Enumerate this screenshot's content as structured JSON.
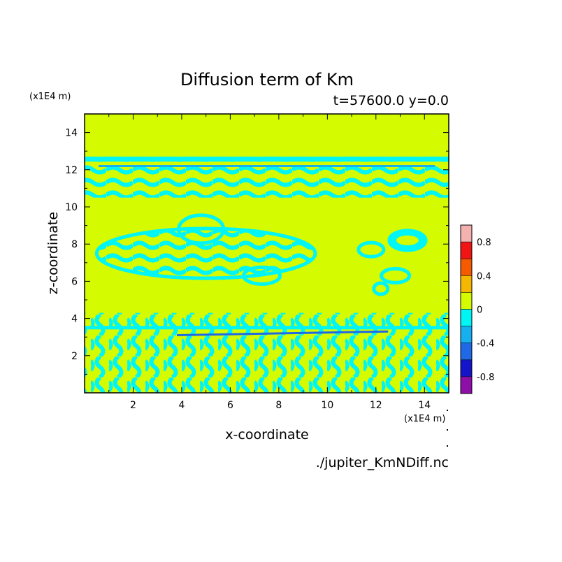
{
  "chart_data": {
    "type": "heatmap",
    "title": "Diffusion term of Km",
    "subtitle": "t=57600.0 y=0.0",
    "xlabel": "x-coordinate",
    "ylabel": "z-coordinate",
    "x_unit_label": "(x1E4 m)",
    "y_unit_label": "(x1E4 m)",
    "source_label": "./jupiter_KmNDiff.nc",
    "xlim": [
      0,
      15
    ],
    "ylim": [
      0,
      15
    ],
    "x_ticks": [
      2,
      4,
      6,
      8,
      10,
      12,
      14
    ],
    "y_ticks": [
      2,
      4,
      6,
      8,
      10,
      12,
      14
    ],
    "background_level": "0 to 0.2",
    "background_color": "#d4fb00",
    "colorbar": {
      "boundaries": [
        -1.0,
        -0.8,
        -0.6,
        -0.4,
        -0.2,
        0.0,
        0.2,
        0.4,
        0.6,
        0.8,
        1.0
      ],
      "colors": [
        "#8e0fa8",
        "#1414c8",
        "#1f69e6",
        "#16b0f0",
        "#00f5f5",
        "#d4fb00",
        "#f5b800",
        "#f55a00",
        "#f01414",
        "#f5b0b0"
      ],
      "tick_labels": [
        {
          "value": -0.8,
          "label": "-0.8"
        },
        {
          "value": -0.4,
          "label": "-0.4"
        },
        {
          "value": 0.0,
          "label": "0"
        },
        {
          "value": 0.4,
          "label": "0.4"
        },
        {
          "value": 0.8,
          "label": "0.8"
        }
      ]
    },
    "regions": [
      {
        "name": "upper-band",
        "z_range": [
          10.5,
          12.7
        ],
        "level": "-0.2 to 0"
      },
      {
        "name": "lower-band",
        "z_range": [
          0.0,
          4.3
        ],
        "level": "-0.2 to 0"
      },
      {
        "name": "mid-cloud-left",
        "x_range": [
          0.5,
          9.5
        ],
        "z_range": [
          5.5,
          9.8
        ],
        "level": "-0.2 to 0"
      },
      {
        "name": "mid-blobs-right",
        "x_range": [
          11.0,
          14.5
        ],
        "z_range": [
          5.5,
          8.5
        ],
        "level": "-0.2 to 0"
      }
    ]
  }
}
